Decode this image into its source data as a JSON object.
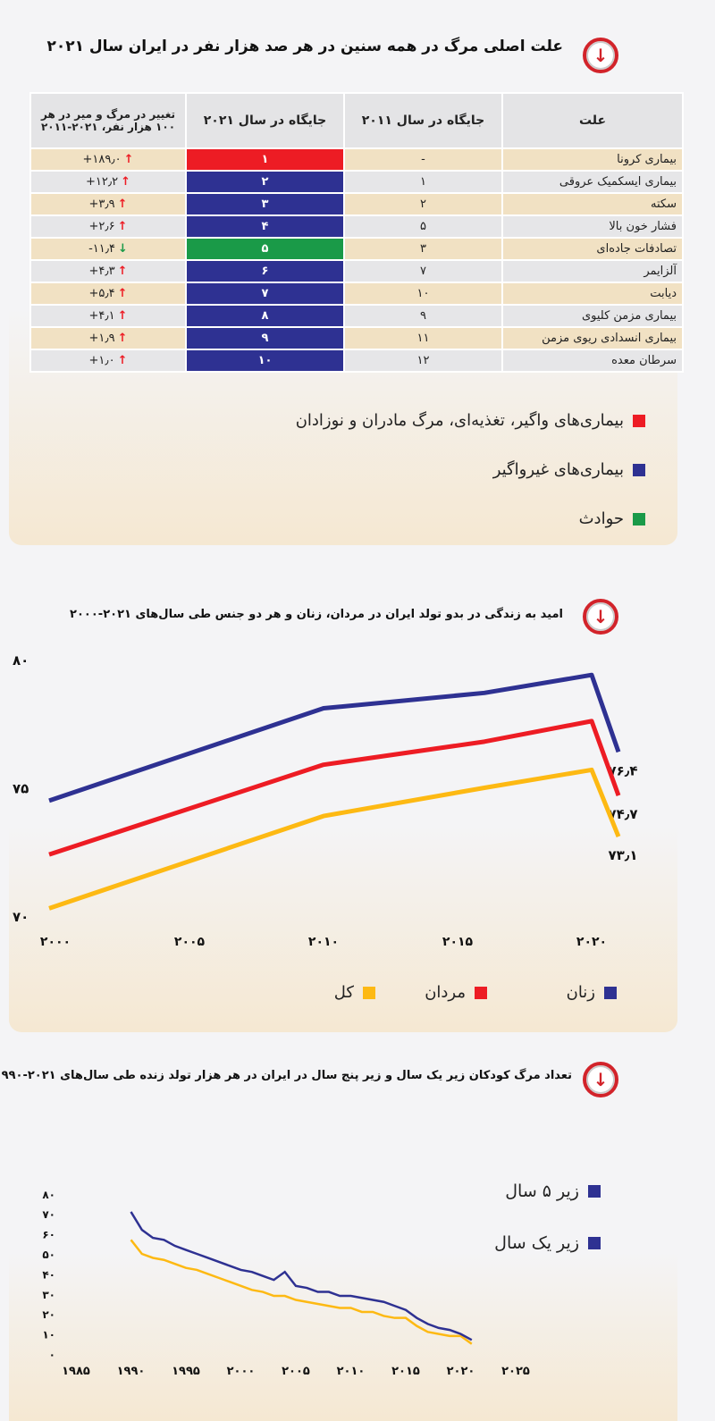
{
  "section1": {
    "title": "علت اصلی مرگ در همه سنین در هر صد هزار نفر در ایران سال ۲۰۲۱",
    "headers": {
      "cause": "علت",
      "rank2011": "جایگاه در سال ۲۰۱۱",
      "rank2021": "جایگاه در سال ۲۰۲۱",
      "change": "تغییر در مرگ و میر در هر ۱۰۰ هزار نفر، ۲۰۲۱-۲۰۱۱"
    },
    "rows": [
      {
        "cause": "بیماری کرونا",
        "rank2011": "-",
        "rank2021": "۱",
        "change": "+۱۸۹٫۰",
        "dir": "up",
        "group": "red"
      },
      {
        "cause": "بیماری ایسکمیک عروقی",
        "rank2011": "۱",
        "rank2021": "۲",
        "change": "+۱۲٫۲",
        "dir": "up",
        "group": "blue"
      },
      {
        "cause": "سکته",
        "rank2011": "۲",
        "rank2021": "۳",
        "change": "+۳٫۹",
        "dir": "up",
        "group": "blue"
      },
      {
        "cause": "فشار خون بالا",
        "rank2011": "۵",
        "rank2021": "۴",
        "change": "+۲٫۶",
        "dir": "up",
        "group": "blue"
      },
      {
        "cause": "تصادفات جاده‌ای",
        "rank2011": "۳",
        "rank2021": "۵",
        "change": "-۱۱٫۴",
        "dir": "down",
        "group": "green"
      },
      {
        "cause": "آلزایمر",
        "rank2011": "۷",
        "rank2021": "۶",
        "change": "+۴٫۳",
        "dir": "up",
        "group": "blue"
      },
      {
        "cause": "دیابت",
        "rank2011": "۱۰",
        "rank2021": "۷",
        "change": "+۵٫۴",
        "dir": "up",
        "group": "blue"
      },
      {
        "cause": "بیماری مزمن کلیوی",
        "rank2011": "۹",
        "rank2021": "۸",
        "change": "+۴٫۱",
        "dir": "up",
        "group": "blue"
      },
      {
        "cause": "بیماری انسدادی ریوی مزمن",
        "rank2011": "۱۱",
        "rank2021": "۹",
        "change": "+۱٫۹",
        "dir": "up",
        "group": "blue"
      },
      {
        "cause": "سرطان معده",
        "rank2011": "۱۲",
        "rank2021": "۱۰",
        "change": "+۱٫۰",
        "dir": "up",
        "group": "blue"
      }
    ],
    "legend": [
      {
        "label": "بیماری‌های واگیر، تغذیه‌ای، مرگ مادران و نوزادان",
        "color": "#ed1c24"
      },
      {
        "label": "بیماری‌های غیرواگیر",
        "color": "#2e3192"
      },
      {
        "label": "حوادث",
        "color": "#1a9a48"
      }
    ],
    "colors": {
      "red": "#ed1c24",
      "blue": "#2e3192",
      "green": "#1a9a48",
      "up": "#ed1c24",
      "down": "#1a9a48"
    }
  },
  "chart_data": [
    {
      "type": "line",
      "title": "امید به زندگی در بدو تولد ایران در مردان، زنان و هر دو جنس طی سال‌های ۲۰۲۱-۲۰۰۰",
      "ylim": [
        70,
        80
      ],
      "yticks": [
        {
          "v": 70,
          "label": "۷۰"
        },
        {
          "v": 75,
          "label": "۷۵"
        },
        {
          "v": 80,
          "label": "۸۰"
        }
      ],
      "xticks": [
        {
          "v": 2000,
          "label": "۲۰۰۰"
        },
        {
          "v": 2005,
          "label": "۲۰۰۵"
        },
        {
          "v": 2010,
          "label": "۲۰۱۰"
        },
        {
          "v": 2015,
          "label": "۲۰۱۵"
        },
        {
          "v": 2020,
          "label": "۲۰۲۰"
        }
      ],
      "x": [
        2000,
        2010,
        2016,
        2020,
        2021
      ],
      "series": [
        {
          "name": "زنان",
          "color": "#2e3192",
          "values": [
            74.5,
            78.1,
            78.7,
            79.4,
            76.4
          ],
          "end_label": "۷۶٫۴"
        },
        {
          "name": "مردان",
          "color": "#ed1c24",
          "values": [
            72.4,
            75.9,
            76.8,
            77.6,
            74.7
          ],
          "end_label": "۷۴٫۷"
        },
        {
          "name": "کل",
          "color": "#fdb913",
          "values": [
            70.3,
            73.9,
            75.0,
            75.7,
            73.1
          ],
          "end_label": "۷۳٫۱"
        }
      ],
      "legend": "bottom",
      "grid": false
    },
    {
      "type": "line",
      "title": "تعداد مرگ کودکان زیر یک سال و زیر پنج سال در ایران در هر هزار تولد زنده طی سال‌های ۲۰۲۱-۱۹۹۰",
      "ylim": [
        0,
        80
      ],
      "yticks": [
        {
          "v": 0,
          "label": "۰"
        },
        {
          "v": 10,
          "label": "۱۰"
        },
        {
          "v": 20,
          "label": "۲۰"
        },
        {
          "v": 30,
          "label": "۳۰"
        },
        {
          "v": 40,
          "label": "۴۰"
        },
        {
          "v": 50,
          "label": "۵۰"
        },
        {
          "v": 60,
          "label": "۶۰"
        },
        {
          "v": 70,
          "label": "۷۰"
        },
        {
          "v": 80,
          "label": "۸۰"
        }
      ],
      "xticks": [
        {
          "v": 1985,
          "label": "۱۹۸۵"
        },
        {
          "v": 1990,
          "label": "۱۹۹۰"
        },
        {
          "v": 1995,
          "label": "۱۹۹۵"
        },
        {
          "v": 2000,
          "label": "۲۰۰۰"
        },
        {
          "v": 2005,
          "label": "۲۰۰۵"
        },
        {
          "v": 2010,
          "label": "۲۰۱۰"
        },
        {
          "v": 2015,
          "label": "۲۰۱۵"
        },
        {
          "v": 2020,
          "label": "۲۰۲۰"
        },
        {
          "v": 2025,
          "label": "۲۰۲۵"
        }
      ],
      "x_start": 1990,
      "series": [
        {
          "name": "زیر ۵ سال",
          "color": "#2e3192",
          "legend_color": "#2e3192",
          "values": [
            71,
            62,
            58,
            57,
            54,
            52,
            50,
            48,
            46,
            44,
            42,
            41,
            39,
            37,
            41,
            34,
            33,
            31,
            31,
            29,
            29,
            28,
            27,
            26,
            24,
            22,
            18,
            15,
            13,
            12,
            10,
            7
          ]
        },
        {
          "name": "زیر یک سال",
          "color": "#fdb913",
          "legend_color": "#2e3192",
          "values": [
            57,
            50,
            48,
            47,
            45,
            43,
            42,
            40,
            38,
            36,
            34,
            32,
            31,
            29,
            29,
            27,
            26,
            25,
            24,
            23,
            23,
            21,
            21,
            19,
            18,
            18,
            14,
            11,
            10,
            9,
            9,
            5
          ]
        }
      ],
      "legend": "top-right",
      "grid": false
    }
  ]
}
